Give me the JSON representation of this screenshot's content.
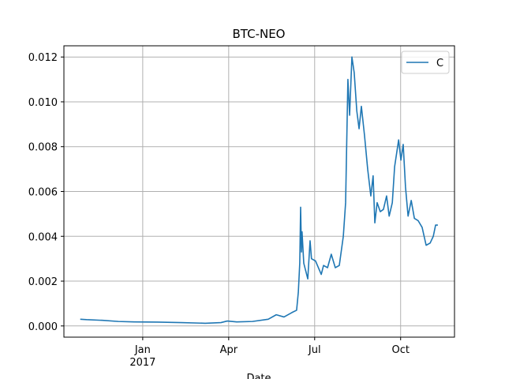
{
  "chart_data": {
    "type": "line",
    "title": "BTC-NEO",
    "xlabel": "Date",
    "x": [
      -2.18,
      -1.96,
      -1.4,
      -0.85,
      -0.3,
      0.52,
      1.35,
      2.18,
      2.73,
      2.95,
      3.28,
      3.83,
      4.38,
      4.66,
      4.93,
      5.21,
      5.37,
      5.43,
      5.48,
      5.51,
      5.54,
      5.56,
      5.62,
      5.76,
      5.84,
      5.89,
      6.03,
      6.23,
      6.31,
      6.45,
      6.58,
      6.72,
      6.86,
      7.0,
      7.08,
      7.16,
      7.22,
      7.3,
      7.38,
      7.47,
      7.55,
      7.63,
      7.74,
      7.85,
      7.96,
      8.04,
      8.1,
      8.18,
      8.29,
      8.4,
      8.51,
      8.6,
      8.71,
      8.79,
      8.93,
      9.01,
      9.09,
      9.17,
      9.26,
      9.37,
      9.48,
      9.61,
      9.75,
      9.89,
      10.03,
      10.14,
      10.22,
      10.3
    ],
    "series": [
      {
        "name": "C",
        "color": "#1f77b4",
        "values": [
          0.0003,
          0.00028,
          0.00025,
          0.0002,
          0.00018,
          0.00017,
          0.00015,
          0.00012,
          0.00015,
          0.00022,
          0.00018,
          0.0002,
          0.0003,
          0.0005,
          0.0004,
          0.0006,
          0.0007,
          0.0015,
          0.0028,
          0.0053,
          0.0033,
          0.0042,
          0.0028,
          0.0021,
          0.0038,
          0.003,
          0.0029,
          0.0023,
          0.0027,
          0.0026,
          0.0032,
          0.0026,
          0.0027,
          0.004,
          0.0055,
          0.011,
          0.0094,
          0.012,
          0.0113,
          0.0096,
          0.0088,
          0.0098,
          0.0085,
          0.007,
          0.0058,
          0.0067,
          0.0046,
          0.0055,
          0.0051,
          0.0052,
          0.0058,
          0.0049,
          0.0055,
          0.0071,
          0.0083,
          0.0074,
          0.0081,
          0.0062,
          0.0049,
          0.0056,
          0.0048,
          0.0047,
          0.0044,
          0.0036,
          0.0037,
          0.004,
          0.0045,
          0.0045
        ]
      }
    ],
    "xlim": [
      -2.75,
      10.88
    ],
    "xticks": [
      {
        "value": 0,
        "label": "Jan\n2017"
      },
      {
        "value": 3,
        "label": "Apr"
      },
      {
        "value": 6,
        "label": "Jul"
      },
      {
        "value": 9,
        "label": "Oct"
      }
    ],
    "ylim": [
      -0.0005,
      0.0125
    ],
    "yticks": [
      {
        "value": 0,
        "label": "0.000"
      },
      {
        "value": 0.002,
        "label": "0.002"
      },
      {
        "value": 0.004,
        "label": "0.004"
      },
      {
        "value": 0.006,
        "label": "0.006"
      },
      {
        "value": 0.008,
        "label": "0.008"
      },
      {
        "value": 0.01,
        "label": "0.010"
      },
      {
        "value": 0.012,
        "label": "0.012"
      }
    ],
    "grid": true,
    "legend": "upper right"
  }
}
